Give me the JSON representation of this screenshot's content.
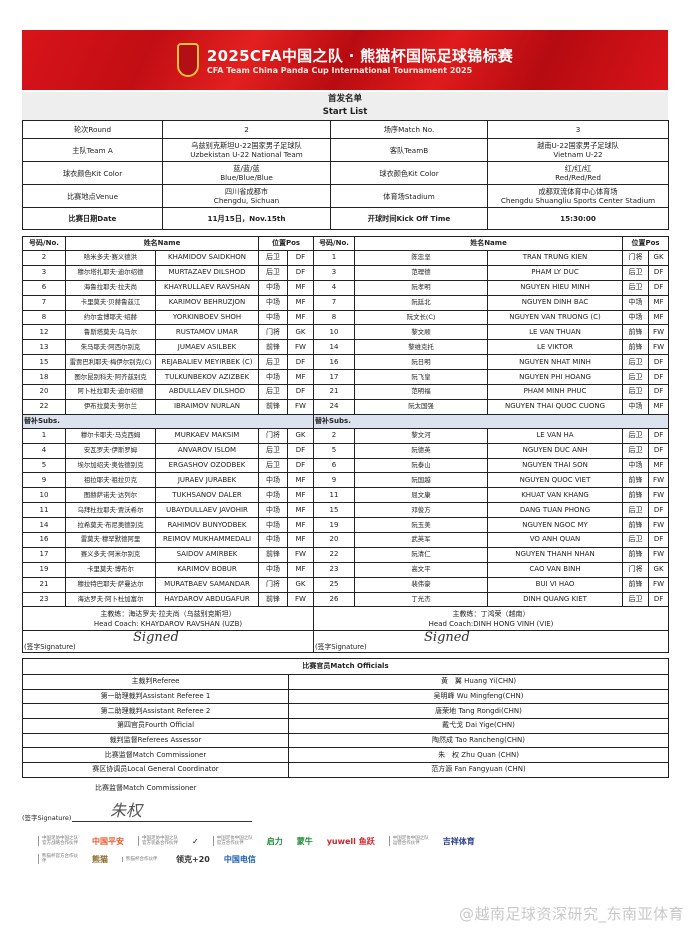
{
  "banner": {
    "title_cn": "2025CFA中国之队 · 熊猫杯国际足球锦标赛",
    "title_en": "CFA Team China Panda Cup International Tournament 2025",
    "crest": "CFA",
    "color": "#d8141a"
  },
  "title": {
    "cn": "首发名单",
    "en": "Start List"
  },
  "info": [
    [
      "轮次Round",
      "2",
      "场序Match No.",
      "3"
    ],
    [
      "主队Team A",
      "乌兹别克斯坦U-22国家男子足球队\nUzbekistan U-22 National Team",
      "客队TeamB",
      "越南U-22国家男子足球队\nVietnam U-22"
    ],
    [
      "球衣颜色Kit Color",
      "蓝/蓝/蓝\nBlue/Blue/Blue",
      "球衣颜色Kit Color",
      "红/红/红\nRed/Red/Red"
    ],
    [
      "比赛地点Venue",
      "四川省成都市\nChengdu, Sichuan",
      "体育场Stadium",
      "成都双流体育中心体育场\nChengdu Shuangliu Sports Center Stadium"
    ],
    [
      "比赛日期Date",
      "11月15日，Nov.15th",
      "开球时间Kick Off Time",
      "15:30:00"
    ]
  ],
  "headers": {
    "no": "号码/No.",
    "name": "姓名Name",
    "pos": "位置Pos",
    "subs": "替补Subs."
  },
  "teamA": {
    "starters": [
      [
        "2",
        "哈米多夫·赛义德洪",
        "KHAMIDOV SAIDKHON",
        "后卫",
        "DF"
      ],
      [
        "3",
        "穆尔塔扎耶夫·迪尔绍德",
        "MURTAZAEV DILSHOD",
        "后卫",
        "DF"
      ],
      [
        "6",
        "海鲁拉耶夫·拉夫尚",
        "KHAYRULLAEV RAVSHAN",
        "中场",
        "MF"
      ],
      [
        "7",
        "卡里莫夫·贝赫鲁兹江",
        "KARIMOV BEHRUZJON",
        "中场",
        "MF"
      ],
      [
        "8",
        "约尔金博耶夫·绍赫",
        "YORKINBOEV SHOH",
        "中场",
        "MF"
      ],
      [
        "12",
        "鲁斯塔莫夫·乌马尔",
        "RUSTAMOV UMAR",
        "门将",
        "GK"
      ],
      [
        "13",
        "朱马耶夫·阿西尔别克",
        "JUMAEV ASILBEK",
        "前锋",
        "FW"
      ],
      [
        "15",
        "雷贾巴利耶夫·梅伊尔别克(C)",
        "REJABALIEV MEYIRBEK (C)",
        "后卫",
        "DF"
      ],
      [
        "18",
        "图尔昆别科夫·阿齐兹别克",
        "TULKUNBEKOV AZIZBEK",
        "中场",
        "MF"
      ],
      [
        "20",
        "阿卜杜拉耶夫·迪尔绍德",
        "ABDULLAEV DILSHOD",
        "后卫",
        "DF"
      ],
      [
        "22",
        "伊布拉莫夫·努尔兰",
        "IBRAIMOV NURLAN",
        "前锋",
        "FW"
      ]
    ],
    "subs": [
      [
        "1",
        "穆尔卡耶夫·马克西姆",
        "MURKAEV MAKSIM",
        "门将",
        "GK"
      ],
      [
        "4",
        "安瓦罗夫·伊斯罗姆",
        "ANVAROV ISLOM",
        "后卫",
        "DF"
      ],
      [
        "5",
        "埃尔加绍夫·奥佐德别克",
        "ERGASHOV OZODBEK",
        "后卫",
        "DF"
      ],
      [
        "9",
        "祖拉耶夫·祖拉贝克",
        "JURAEV JURABEK",
        "中场",
        "MF"
      ],
      [
        "10",
        "图赫萨诺夫·达列尔",
        "TUKHSANOV DALER",
        "中场",
        "MF"
      ],
      [
        "11",
        "乌拜杜拉耶夫·贾沃希尔",
        "UBAYDULLAEV JAVOHIR",
        "中场",
        "MF"
      ],
      [
        "14",
        "拉希莫夫·布尼奥德别克",
        "RAHIMOV BUNYODBEK",
        "中场",
        "MF"
      ],
      [
        "16",
        "雷莫夫·穆罕默德阿里",
        "REIMOV MUKHAMMEDALI",
        "中场",
        "MF"
      ],
      [
        "17",
        "赛义多夫·阿米尔别克",
        "SAIDOV AMIRBEK",
        "前锋",
        "FW"
      ],
      [
        "19",
        "卡里莫夫·博布尔",
        "KARIMOV BOBUR",
        "中场",
        "MF"
      ],
      [
        "21",
        "穆拉特巴耶夫·萨曼达尔",
        "MURATBAEV SAMANDAR",
        "门将",
        "GK"
      ],
      [
        "23",
        "海达罗夫·阿卜杜加富尔",
        "HAYDAROV ABDUGAFUR",
        "前锋",
        "FW"
      ]
    ],
    "coach_cn": "主教练：海达罗夫·拉夫尚（乌兹别克斯坦）",
    "coach_en": "Head Coach: KHAYDAROV RAVSHAN (UZB)",
    "signature_label": "(签字Signature)",
    "signature": "Signed"
  },
  "teamB": {
    "starters": [
      [
        "1",
        "陈忠坚",
        "TRAN TRUNG KIEN",
        "门将",
        "GK"
      ],
      [
        "3",
        "范理德",
        "PHAM LY DUC",
        "后卫",
        "DF"
      ],
      [
        "4",
        "阮孝明",
        "NGUYEN HIEU MINH",
        "后卫",
        "DF"
      ],
      [
        "7",
        "阮廷北",
        "NGUYEN DINH BAC",
        "中场",
        "MF"
      ],
      [
        "8",
        "阮文长(C)",
        "NGUYEN VAN TRUONG (C)",
        "中场",
        "MF"
      ],
      [
        "10",
        "黎文顺",
        "LE VAN THUAN",
        "前锋",
        "FW"
      ],
      [
        "14",
        "黎维克托",
        "LE VIKTOR",
        "前锋",
        "FW"
      ],
      [
        "16",
        "阮日明",
        "NGUYEN NHAT MINH",
        "后卫",
        "DF"
      ],
      [
        "17",
        "阮飞皇",
        "NGUYEN PHI HOANG",
        "后卫",
        "DF"
      ],
      [
        "21",
        "范明福",
        "PHAM MINH PHUC",
        "后卫",
        "DF"
      ],
      [
        "24",
        "阮太国强",
        "NGUYEN THAI QUOC CUONG",
        "中场",
        "MF"
      ]
    ],
    "subs": [
      [
        "2",
        "黎文河",
        "LE VAN HA",
        "后卫",
        "DF"
      ],
      [
        "5",
        "阮德英",
        "NGUYEN DUC ANH",
        "后卫",
        "DF"
      ],
      [
        "6",
        "阮泰山",
        "NGUYEN THAI SON",
        "中场",
        "MF"
      ],
      [
        "9",
        "阮国越",
        "NGUYEN QUOC VIET",
        "前锋",
        "FW"
      ],
      [
        "11",
        "屈文康",
        "KHUAT VAN KHANG",
        "前锋",
        "FW"
      ],
      [
        "15",
        "邓俊方",
        "DANG TUAN PHONG",
        "后卫",
        "DF"
      ],
      [
        "19",
        "阮玉美",
        "NGUYEN NGOC MY",
        "前锋",
        "FW"
      ],
      [
        "20",
        "武英军",
        "VO ANH QUAN",
        "后卫",
        "DF"
      ],
      [
        "22",
        "阮清仁",
        "NGUYEN THANH NHAN",
        "前锋",
        "FW"
      ],
      [
        "23",
        "高文平",
        "CAO VAN BINH",
        "门将",
        "GK"
      ],
      [
        "25",
        "裴伟豪",
        "BUI VI HAO",
        "前锋",
        "FW"
      ],
      [
        "26",
        "丁光杰",
        "DINH QUANG KIET",
        "后卫",
        "DF"
      ]
    ],
    "coach_cn": "主教练：丁鸿荣（越南）",
    "coach_en": "Head Coach:DINH HONG VINH (VIE)",
    "signature_label": "(签字Signature)",
    "signature": "Signed"
  },
  "officials": {
    "title": "比赛官员Match Officials",
    "rows": [
      [
        "主裁判Referee",
        "黄　翼 Huang Yi(CHN)"
      ],
      [
        "第一助理裁判Assistant Referee 1",
        "吴明峰 Wu Mingfeng(CHN)"
      ],
      [
        "第二助理裁判Assistant Referee 2",
        "唐荣地 Tang Rongdi(CHN)"
      ],
      [
        "第四官员Fourth Official",
        "戴弋戈 Dai Yige(CHN)"
      ],
      [
        "裁判监督Referees Assessor",
        "陶然成 Tao Rancheng(CHN)"
      ],
      [
        "比赛监督Match Commissioner",
        "朱　权 Zhu Quan (CHN)"
      ],
      [
        "赛区协调员Local General Coordinator",
        "范方源 Fan Fangyuan (CHN)"
      ]
    ],
    "commissioner_label": "比赛监督Match Commissioner",
    "signature_label": "(签字Signature)",
    "signature": "朱权"
  },
  "sponsors": [
    [
      {
        "t": "中国足协中国之队 官方战略合作伙伴"
      },
      {
        "l": "中国平安",
        "c": "#e8582a"
      },
      {
        "t": "中国足协中国之队 官方装备合作伙伴"
      },
      {
        "l": "✓",
        "c": "#111"
      },
      {
        "t": "中国足协中国之队 官方合作伙伴"
      },
      {
        "l": "启力",
        "c": "#1f8a3a"
      },
      {
        "l": "蒙牛",
        "c": "#1f8a3a"
      },
      {
        "l": "yuwell 鱼跃",
        "c": "#d4242a"
      },
      {
        "t": "中国足协中国之队 运营合作伙伴"
      },
      {
        "l": "吉祥体育",
        "c": "#2a3f8a"
      }
    ],
    [
      {
        "t": "熊猫杯官方合作伙伴"
      },
      {
        "l": "熊猫",
        "c": "#8a6a2a"
      },
      {
        "t": "熊猫杯合作伙伴"
      },
      {
        "l": "领克+20",
        "c": "#333"
      },
      {
        "l": "中国电信",
        "c": "#1d5fb0"
      }
    ]
  ],
  "watermark": "@越南足球资深研究_东南亚体育"
}
